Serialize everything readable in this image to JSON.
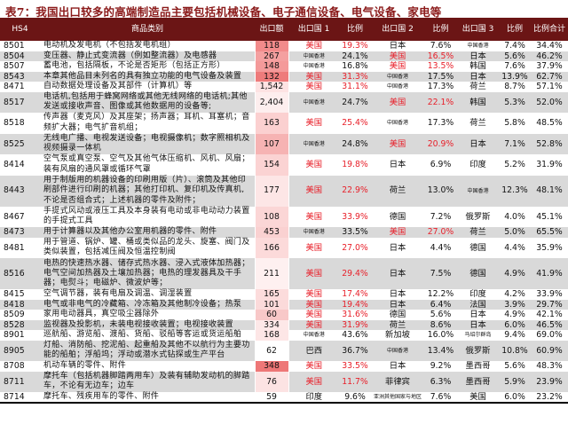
{
  "title": "表7：我国出口较多的高端制造品主要包括机械设备、电子通信设备、电气设备、家电等",
  "headers": [
    "HS4",
    "商品类别",
    "出口额",
    "出口国 1",
    "比例",
    "出口国 2",
    "比例",
    "出口国 3",
    "比例",
    "比例合计"
  ],
  "accent_color": "#6b1515",
  "highlight_color": "#e8202a",
  "rows": [
    {
      "hs": "8501",
      "desc": "电动机及发电机（不包括发电机组）",
      "exp": "118",
      "c1": "美国",
      "r1": "19.3%",
      "c2": "日本",
      "r2": "7.6%",
      "c3": "中国香港",
      "r3": "7.4%",
      "total": "34.4%",
      "heat": "#f28b8b",
      "gray": false
    },
    {
      "hs": "8504",
      "desc": "变压器、静止式变流器（例如整流器）及电感器",
      "exp": "267",
      "c1": "中国香港",
      "r1": "24.1%",
      "c2": "美国",
      "r2": "16.5%",
      "c3": "日本",
      "r3": "5.6%",
      "total": "46.2%",
      "heat": "#f4a0a0",
      "gray": true
    },
    {
      "hs": "8507",
      "desc": "蓄电池，包括隔板，不论是否矩形（包括正方形）",
      "exp": "148",
      "c1": "中国香港",
      "r1": "16.8%",
      "c2": "美国",
      "r2": "13.5%",
      "c3": "韩国",
      "r3": "7.6%",
      "total": "37.9%",
      "heat": "#f49a9a",
      "gray": false
    },
    {
      "hs": "8543",
      "desc": "本章其他品目未列名的具有独立功能的电气设备及装置",
      "exp": "132",
      "c1": "美国",
      "r1": "31.3%",
      "c2": "中国香港",
      "r2": "17.5%",
      "c3": "日本",
      "r3": "13.9%",
      "total": "62.7%",
      "heat": "#ee7b7b",
      "gray": true
    },
    {
      "hs": "8471",
      "desc": "自动数据处理设备及其部件（计算机）等",
      "exp": "1,542",
      "c1": "美国",
      "r1": "31.1%",
      "c2": "中国香港",
      "r2": "17.3%",
      "c3": "荷兰",
      "r3": "8.7%",
      "total": "57.1%",
      "heat": "#fde3e3",
      "gray": false
    },
    {
      "hs": "8517",
      "desc": "电话机,包括用于蜂窝网络或其他无线网络的电话机;其他发送或接收声音、图像或其他数据用的设备等;",
      "exp": "2,404",
      "c1": "中国香港",
      "r1": "24.7%",
      "c2": "美国",
      "r2": "22.1%",
      "c3": "韩国",
      "r3": "5.3%",
      "total": "52.0%",
      "heat": "#fdeeee",
      "gray": true
    },
    {
      "hs": "8518",
      "desc": "传声器（麦克风）及其座架；扬声器；耳机、耳塞机；音频扩大器；电气扩音机组；",
      "exp": "163",
      "c1": "美国",
      "r1": "25.4%",
      "c2": "中国香港",
      "r2": "17.3%",
      "c3": "荷兰",
      "r3": "5.8%",
      "total": "48.5%",
      "heat": "#fbd0d0",
      "gray": false
    },
    {
      "hs": "8525",
      "desc": "无线电广播、电视发送设备；电视摄像机；数字照相机及视频摄录一体机",
      "exp": "107",
      "c1": "中国香港",
      "r1": "24.8%",
      "c2": "美国",
      "r2": "20.9%",
      "c3": "日本",
      "r3": "7.1%",
      "total": "52.8%",
      "heat": "#f6b3b3",
      "gray": true
    },
    {
      "hs": "8414",
      "desc": "空气泵或真空泵、空气及其他气体压缩机、风机、风扇；装有风扇的通风罩或循环气罩",
      "exp": "154",
      "c1": "美国",
      "r1": "19.8%",
      "c2": "日本",
      "r2": "6.9%",
      "c3": "印度",
      "r3": "5.2%",
      "total": "31.9%",
      "heat": "#fbd3d3",
      "gray": false
    },
    {
      "hs": "8443",
      "desc": "用于制版用的机器设备的印刷用版（片）、滚筒及其他印刷部件进行印刷的机器；其他打印机、复印机及传真机,不论是否组合式；上述机器的零件及附件；",
      "exp": "177",
      "c1": "美国",
      "r1": "22.9%",
      "c2": "荷兰",
      "r2": "13.0%",
      "c3": "中国香港",
      "r3": "12.3%",
      "total": "48.1%",
      "heat": "#fde6e6",
      "gray": true
    },
    {
      "hs": "8467",
      "desc": "手提式风动或液压工具及本身装有电动或非电动动力装置的手提式工具",
      "exp": "108",
      "c1": "美国",
      "r1": "33.9%",
      "c2": "德国",
      "r2": "7.2%",
      "c3": "俄罗斯",
      "r3": "4.0%",
      "total": "45.1%",
      "heat": "#fbd6d6",
      "gray": false
    },
    {
      "hs": "8473",
      "desc": "用于计算器以及其他办公室用机器的零件、附件",
      "exp": "453",
      "c1": "中国香港",
      "r1": "33.5%",
      "c2": "美国",
      "r2": "27.0%",
      "c3": "荷兰",
      "r3": "5.0%",
      "total": "65.5%",
      "heat": "#fad1d1",
      "gray": true
    },
    {
      "hs": "8481",
      "desc": "用于管道、锅炉、罐、桶或类似品的龙头、旋塞、阀门及类似装置，包括减压阀及恒温控制阀",
      "exp": "166",
      "c1": "美国",
      "r1": "27.0%",
      "c2": "日本",
      "r2": "4.4%",
      "c3": "德国",
      "r3": "4.4%",
      "total": "35.9%",
      "heat": "#fcdada",
      "gray": false
    },
    {
      "hs": "8516",
      "desc": "电热的快速热水器、储存式热水器、浸入式液体加热器；电气空间加热器及土壤加热器；电热的理发器具及干手器；电熨斗；电磁炉、微波炉等；",
      "exp": "211",
      "c1": "美国",
      "r1": "29.4%",
      "c2": "日本",
      "r2": "7.5%",
      "c3": "德国",
      "r3": "4.9%",
      "total": "41.9%",
      "heat": "#fef0f0",
      "gray": true
    },
    {
      "hs": "8415",
      "desc": "空气调节器，装有电扇及调温、调湿装置",
      "exp": "165",
      "c1": "美国",
      "r1": "17.4%",
      "c2": "日本",
      "r2": "12.2%",
      "c3": "印度",
      "r3": "4.2%",
      "total": "33.9%",
      "heat": "#fcdcdc",
      "gray": false
    },
    {
      "hs": "8418",
      "desc": "电气或非电气的冷藏箱、冷冻箱及其他制冷设备；热泵",
      "exp": "101",
      "c1": "美国",
      "r1": "19.4%",
      "c2": "日本",
      "r2": "6.4%",
      "c3": "法国",
      "r3": "3.9%",
      "total": "29.7%",
      "heat": "#fbdada",
      "gray": true
    },
    {
      "hs": "8509",
      "desc": "家用电动器具，真空吸尘器除外",
      "exp": "60",
      "c1": "美国",
      "r1": "31.6%",
      "c2": "德国",
      "r2": "5.6%",
      "c3": "日本",
      "r3": "4.9%",
      "total": "42.1%",
      "heat": "#f8c8c8",
      "gray": false
    },
    {
      "hs": "8528",
      "desc": "监视器及投影机，未装电视接收装置；电视接收装置",
      "exp": "334",
      "c1": "美国",
      "r1": "31.9%",
      "c2": "荷兰",
      "r2": "8.6%",
      "c3": "日本",
      "r3": "6.0%",
      "total": "46.5%",
      "heat": "#fde8e8",
      "gray": true
    },
    {
      "hs": "8901",
      "desc": "巡航船、游览船、渡船、货船、驳船等客运或货运船舶",
      "exp": "168",
      "c1": "中国香港",
      "r1": "43.6%",
      "c2": "新加坡",
      "r2": "16.0%",
      "c3": "马绍尔群岛",
      "r3": "9.4%",
      "total": "69.0%",
      "heat": "#fde6e6",
      "gray": false
    },
    {
      "hs": "8905",
      "desc": "灯船、消防船、挖泥船、起重船及其他不以航行为主要功能的船舶；浮船坞；浮动或潜水式钻探或生产平台",
      "exp": "62",
      "c1": "巴西",
      "r1": "36.7%",
      "c2": "中国香港",
      "r2": "13.4%",
      "c3": "俄罗斯",
      "r3": "10.8%",
      "total": "60.9%",
      "heat": "#ffffff",
      "gray": true
    },
    {
      "hs": "8708",
      "desc": "机动车辆的零件、附件",
      "exp": "348",
      "c1": "美国",
      "r1": "33.5%",
      "c2": "日本",
      "r2": "9.2%",
      "c3": "墨西哥",
      "r3": "5.6%",
      "total": "48.3%",
      "heat": "#ee7777",
      "gray": false
    },
    {
      "hs": "8711",
      "desc": "摩托车（包括机器脚踏两用车）及装有辅助发动机的脚踏车，不论有无边车；边车",
      "exp": "76",
      "c1": "美国",
      "r1": "11.7%",
      "c2": "菲律宾",
      "r2": "6.3%",
      "c3": "墨西哥",
      "r3": "5.9%",
      "total": "23.9%",
      "heat": "#fce3e3",
      "gray": true
    },
    {
      "hs": "8714",
      "desc": "摩托车、残疾用车的零件、附件",
      "exp": "59",
      "c1": "印度",
      "r1": "9.6%",
      "c2": "亚洲其他国家与地区",
      "r2": "7.6%",
      "c3": "美国",
      "r3": "6.0%",
      "total": "23.2%",
      "heat": "#ffffff",
      "gray": false
    }
  ]
}
